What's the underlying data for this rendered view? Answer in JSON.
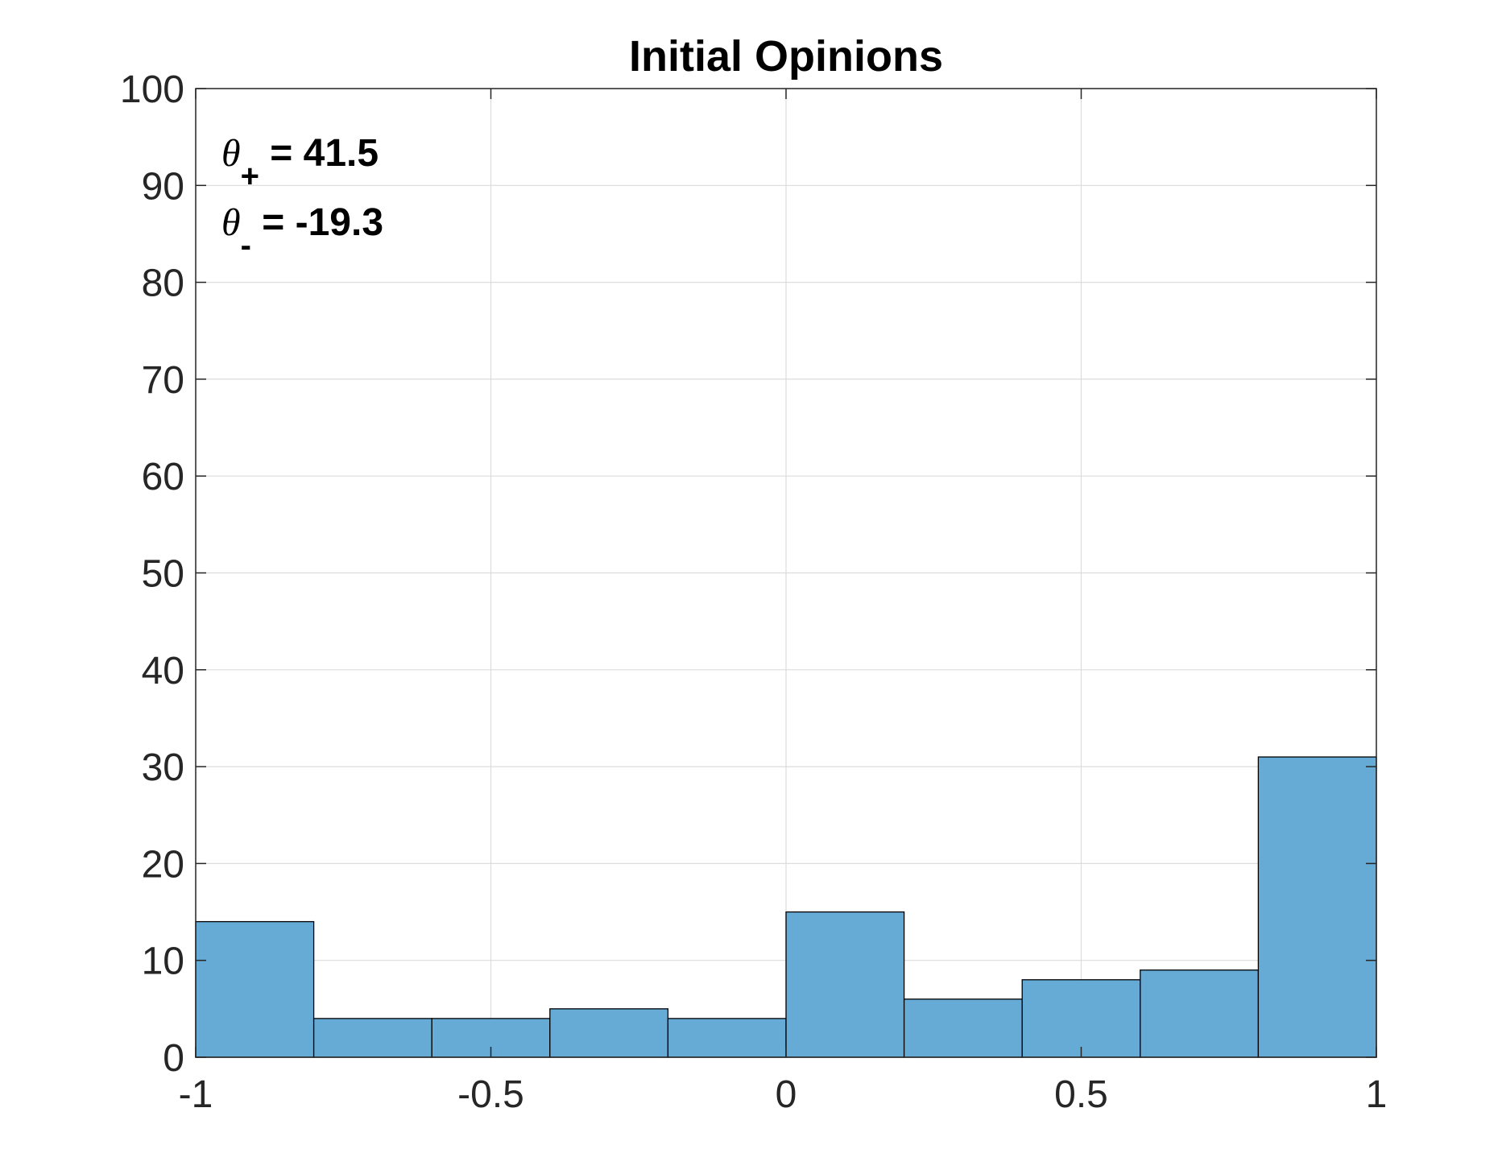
{
  "chart_data": {
    "type": "bar",
    "title": "Initial Opinions",
    "xlabel": "",
    "ylabel": "",
    "xlim": [
      -1,
      1
    ],
    "ylim": [
      0,
      100
    ],
    "bin_edges": [
      -1,
      -0.8,
      -0.6,
      -0.4,
      -0.2,
      0,
      0.2,
      0.4,
      0.6,
      0.8,
      1
    ],
    "values": [
      14,
      4,
      4,
      5,
      4,
      15,
      6,
      8,
      9,
      31
    ],
    "x_ticks": [
      -1,
      -0.5,
      0,
      0.5,
      1
    ],
    "x_tick_labels": [
      "-1",
      "-0.5",
      "0",
      "0.5",
      "1"
    ],
    "y_ticks": [
      0,
      10,
      20,
      30,
      40,
      50,
      60,
      70,
      80,
      90,
      100
    ],
    "y_tick_labels": [
      "0",
      "10",
      "20",
      "30",
      "40",
      "50",
      "60",
      "70",
      "80",
      "90",
      "100"
    ],
    "grid": true,
    "bar_color": "#66aad6",
    "annotations": [
      {
        "symbol": "θ",
        "subscript": "+",
        "text": " = 41.5"
      },
      {
        "symbol": "θ",
        "subscript": "-",
        "text": " = -19.3"
      }
    ]
  }
}
